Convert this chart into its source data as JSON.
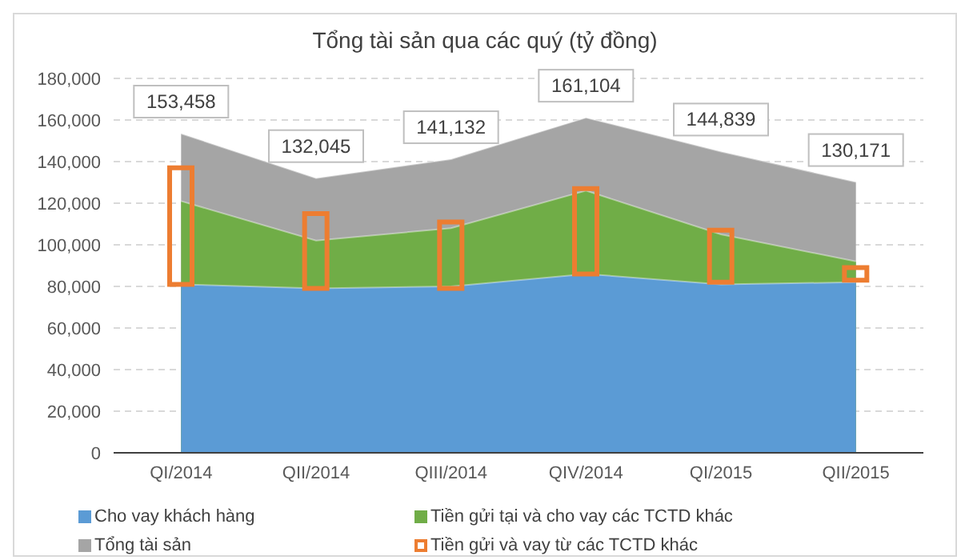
{
  "chart_data": {
    "type": "area",
    "title": "Tổng tài sản qua các quý (tỷ đồng)",
    "categories": [
      "QI/2014",
      "QII/2014",
      "QIII/2014",
      "QIV/2014",
      "QI/2015",
      "QII/2015"
    ],
    "series": [
      {
        "name": "Cho vay khách hàng",
        "color": "#5b9bd5",
        "values": [
          81000,
          79000,
          80000,
          86000,
          81000,
          82000
        ]
      },
      {
        "name": "Tiền gửi tại và cho vay các TCTD khác",
        "color": "#70ad47",
        "values": [
          121000,
          102000,
          108000,
          126000,
          105000,
          92000
        ]
      },
      {
        "name": "Tổng tài sản",
        "color": "#a5a5a5",
        "values": [
          153458,
          132045,
          141132,
          161104,
          144839,
          130171
        ],
        "value_labels": [
          "153,458",
          "132,045",
          "141,132",
          "161,104",
          "144,839",
          "130,171"
        ]
      },
      {
        "name": "Tiền gửi và vay từ các TCTD khác",
        "type": "bar",
        "color": "#ed7d31",
        "base": [
          81000,
          79000,
          79000,
          86000,
          82000,
          83000
        ],
        "values": [
          56000,
          36000,
          32000,
          41000,
          25000,
          6000
        ]
      }
    ],
    "ylim": [
      0,
      180000
    ],
    "yticks": [
      {
        "value": 0,
        "label": "0"
      },
      {
        "value": 20000,
        "label": "20,000"
      },
      {
        "value": 40000,
        "label": "40,000"
      },
      {
        "value": 60000,
        "label": "60,000"
      },
      {
        "value": 80000,
        "label": "80,000"
      },
      {
        "value": 100000,
        "label": "100,000"
      },
      {
        "value": 120000,
        "label": "120,000"
      },
      {
        "value": 140000,
        "label": "140,000"
      },
      {
        "value": 160000,
        "label": "160,000"
      },
      {
        "value": 180000,
        "label": "180,000"
      }
    ],
    "grid": "y",
    "legend": "bottom"
  }
}
